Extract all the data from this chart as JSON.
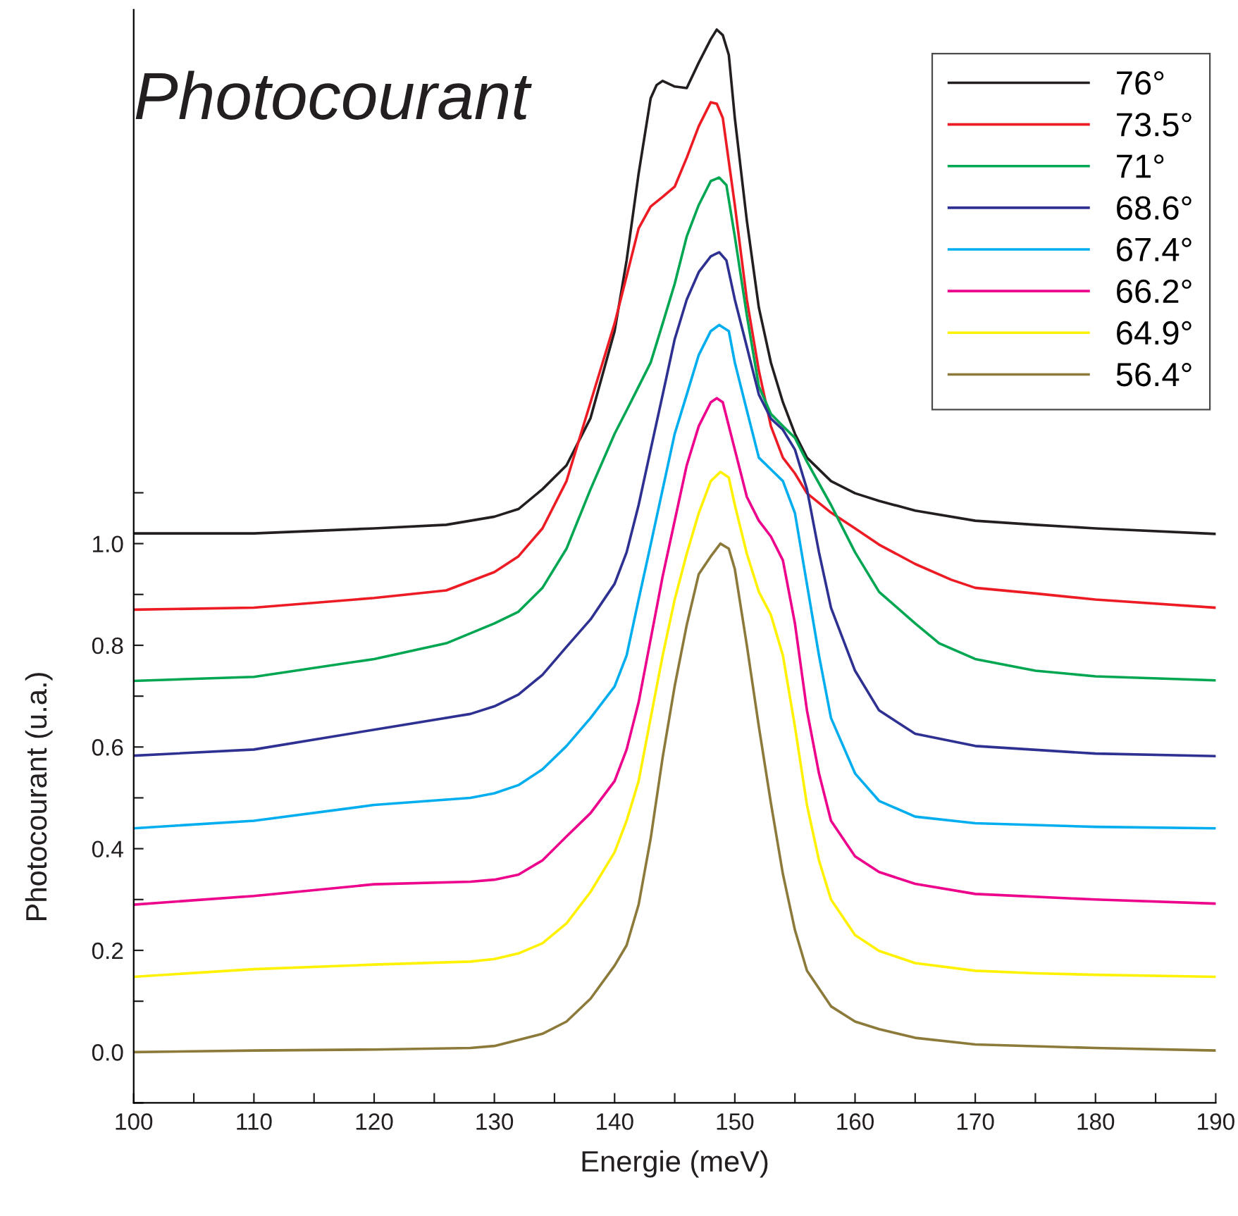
{
  "chart_data": {
    "type": "line",
    "title": "Photocourant",
    "xlabel": "Energie (meV)",
    "ylabel": "Photocourant (u.a.)",
    "xlim": [
      100,
      190
    ],
    "ylim": [
      -0.1,
      2.05
    ],
    "xticks": [
      100,
      {
        "value": 105,
        "label": null
      },
      110,
      {
        "value": 115,
        "label": null
      },
      120,
      {
        "value": 125,
        "label": null
      },
      130,
      {
        "value": 135,
        "label": null
      },
      140,
      {
        "value": 145,
        "label": null
      },
      150,
      {
        "value": 155,
        "label": null
      },
      160,
      {
        "value": 165,
        "label": null
      },
      170,
      {
        "value": 175,
        "label": null
      },
      180,
      {
        "value": 185,
        "label": null
      },
      190
    ],
    "yticks": [
      {
        "value": -0.1,
        "label": null
      },
      {
        "value": 0,
        "label": "0.0"
      },
      {
        "value": 0.1,
        "label": null
      },
      0.2,
      {
        "value": 0.3,
        "label": null
      },
      0.4,
      {
        "value": 0.5,
        "label": null
      },
      0.6,
      {
        "value": 0.7,
        "label": null
      },
      0.8,
      {
        "value": 0.9,
        "label": null
      },
      {
        "value": 1,
        "label": "1.0"
      },
      {
        "value": 1.1,
        "label": null
      }
    ],
    "grid": false,
    "legend": "top right",
    "marker": "none",
    "line_style": "solid",
    "series": [
      {
        "name": "76°",
        "color": "#231f20",
        "x": [
          100,
          110,
          120,
          126,
          130,
          132,
          134,
          136,
          138,
          140,
          141,
          142,
          143,
          143.5,
          144,
          145,
          146,
          147,
          148,
          148.5,
          149,
          149.5,
          150,
          151,
          152,
          153,
          154,
          155,
          156,
          158,
          160,
          162,
          165,
          170,
          175,
          180,
          190
        ],
        "values": [
          1.02,
          1.02,
          1.03,
          1.037,
          1.053,
          1.068,
          1.107,
          1.154,
          1.247,
          1.418,
          1.557,
          1.728,
          1.876,
          1.902,
          1.91,
          1.899,
          1.896,
          1.946,
          1.992,
          2.011,
          2.0,
          1.961,
          1.837,
          1.635,
          1.464,
          1.356,
          1.278,
          1.216,
          1.169,
          1.123,
          1.099,
          1.084,
          1.065,
          1.045,
          1.037,
          1.03,
          1.019
        ]
      },
      {
        "name": "73.5°",
        "color": "#ed1c24",
        "x": [
          100,
          110,
          120,
          126,
          130,
          132,
          134,
          136,
          138,
          140,
          141,
          142,
          143,
          144,
          145,
          146,
          147,
          148,
          148.5,
          149,
          150,
          151,
          152,
          153,
          154,
          155,
          156,
          158,
          160,
          162,
          165,
          168,
          170,
          175,
          180,
          190
        ],
        "values": [
          0.87,
          0.874,
          0.893,
          0.908,
          0.944,
          0.975,
          1.03,
          1.123,
          1.278,
          1.433,
          1.526,
          1.62,
          1.663,
          1.682,
          1.702,
          1.759,
          1.821,
          1.868,
          1.865,
          1.837,
          1.666,
          1.48,
          1.34,
          1.231,
          1.169,
          1.138,
          1.099,
          1.061,
          1.03,
          0.998,
          0.96,
          0.929,
          0.913,
          0.902,
          0.89,
          0.874
        ]
      },
      {
        "name": "71°",
        "color": "#00a651",
        "x": [
          100,
          110,
          120,
          126,
          130,
          132,
          134,
          136,
          138,
          140,
          141,
          142,
          143,
          144,
          145,
          146,
          147,
          148,
          148.7,
          149.3,
          150,
          151,
          152,
          153,
          154,
          155,
          156,
          158,
          160,
          162,
          165,
          167,
          170,
          175,
          180,
          190
        ],
        "values": [
          0.73,
          0.738,
          0.773,
          0.804,
          0.843,
          0.866,
          0.913,
          0.99,
          1.107,
          1.216,
          1.262,
          1.309,
          1.356,
          1.433,
          1.511,
          1.604,
          1.666,
          1.713,
          1.72,
          1.705,
          1.604,
          1.449,
          1.309,
          1.255,
          1.231,
          1.208,
          1.161,
          1.076,
          0.983,
          0.905,
          0.843,
          0.804,
          0.773,
          0.75,
          0.739,
          0.731
        ]
      },
      {
        "name": "68.6°",
        "color": "#2e3192",
        "x": [
          100,
          110,
          120,
          128,
          130,
          132,
          134,
          136,
          138,
          140,
          141,
          142,
          143,
          144,
          145,
          146,
          147,
          148,
          148.7,
          149.3,
          150,
          151,
          152,
          153,
          154,
          155,
          156,
          157,
          158,
          160,
          162,
          165,
          170,
          180,
          190
        ],
        "values": [
          0.583,
          0.595,
          0.634,
          0.665,
          0.68,
          0.703,
          0.742,
          0.797,
          0.851,
          0.921,
          0.983,
          1.076,
          1.185,
          1.293,
          1.402,
          1.48,
          1.534,
          1.565,
          1.573,
          1.557,
          1.48,
          1.387,
          1.293,
          1.246,
          1.224,
          1.185,
          1.107,
          0.983,
          0.874,
          0.75,
          0.672,
          0.626,
          0.602,
          0.587,
          0.582
        ]
      },
      {
        "name": "67.4°",
        "color": "#00aeef",
        "x": [
          100,
          110,
          120,
          128,
          130,
          132,
          134,
          136,
          138,
          140,
          141,
          142,
          143,
          144,
          145,
          146,
          147,
          148,
          148.7,
          149.5,
          150,
          151,
          152,
          153,
          154,
          155,
          156,
          157,
          158,
          160,
          162,
          165,
          170,
          180,
          190
        ],
        "values": [
          0.44,
          0.455,
          0.486,
          0.5,
          0.509,
          0.525,
          0.556,
          0.602,
          0.657,
          0.719,
          0.78,
          0.89,
          0.998,
          1.107,
          1.216,
          1.293,
          1.371,
          1.418,
          1.43,
          1.418,
          1.356,
          1.262,
          1.169,
          1.146,
          1.123,
          1.06,
          0.92,
          0.78,
          0.657,
          0.548,
          0.494,
          0.463,
          0.45,
          0.443,
          0.44
        ]
      },
      {
        "name": "66.2°",
        "color": "#ec008c",
        "x": [
          100,
          110,
          120,
          128,
          130,
          132,
          134,
          136,
          138,
          140,
          141,
          142,
          143,
          144,
          145,
          146,
          147,
          148,
          148.5,
          149,
          150,
          151,
          152,
          153,
          154,
          155,
          156,
          157,
          158,
          160,
          162,
          165,
          170,
          180,
          190
        ],
        "values": [
          0.29,
          0.307,
          0.33,
          0.335,
          0.339,
          0.349,
          0.377,
          0.424,
          0.47,
          0.533,
          0.595,
          0.688,
          0.812,
          0.936,
          1.045,
          1.154,
          1.231,
          1.278,
          1.286,
          1.278,
          1.185,
          1.092,
          1.045,
          1.014,
          0.967,
          0.843,
          0.672,
          0.548,
          0.455,
          0.385,
          0.354,
          0.331,
          0.311,
          0.3,
          0.292
        ]
      },
      {
        "name": "64.9°",
        "color": "#fff200",
        "x": [
          100,
          110,
          120,
          128,
          130,
          132,
          134,
          136,
          138,
          140,
          141,
          142,
          143,
          144,
          145,
          146,
          147,
          148,
          148.8,
          149.5,
          150,
          151,
          152,
          153,
          154,
          155,
          156,
          157,
          158,
          160,
          162,
          165,
          170,
          175,
          180,
          190
        ],
        "values": [
          0.148,
          0.163,
          0.172,
          0.178,
          0.183,
          0.194,
          0.214,
          0.253,
          0.315,
          0.393,
          0.455,
          0.533,
          0.657,
          0.78,
          0.89,
          0.98,
          1.06,
          1.123,
          1.141,
          1.13,
          1.076,
          0.98,
          0.905,
          0.86,
          0.78,
          0.64,
          0.486,
          0.377,
          0.3,
          0.23,
          0.199,
          0.175,
          0.16,
          0.155,
          0.152,
          0.148
        ]
      },
      {
        "name": "56.4°",
        "color": "#8c7a3a",
        "x": [
          100,
          110,
          120,
          128,
          130,
          134,
          136,
          138,
          140,
          141,
          142,
          143,
          144,
          145,
          146,
          147,
          148,
          148.8,
          149.5,
          150,
          151,
          152,
          153,
          154,
          155,
          156,
          158,
          160,
          162,
          165,
          170,
          180,
          190
        ],
        "values": [
          0,
          0.003,
          0.005,
          0.008,
          0.012,
          0.036,
          0.06,
          0.105,
          0.17,
          0.21,
          0.29,
          0.42,
          0.58,
          0.72,
          0.84,
          0.94,
          0.975,
          1.0,
          0.99,
          0.95,
          0.8,
          0.64,
          0.49,
          0.35,
          0.24,
          0.16,
          0.09,
          0.06,
          0.045,
          0.028,
          0.015,
          0.008,
          0.003
        ]
      }
    ]
  }
}
